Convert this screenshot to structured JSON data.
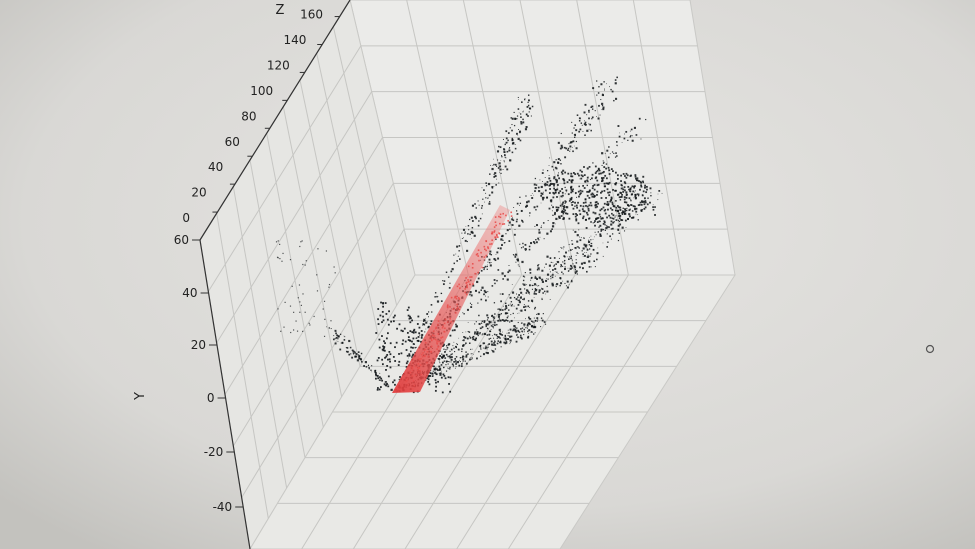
{
  "chart_data": {
    "type": "scatter",
    "projection": "3d",
    "title": "",
    "axes": {
      "y": {
        "label": "Y",
        "ticks": [
          "60",
          "40",
          "20",
          "0",
          "-20",
          "-40"
        ],
        "range": [
          -50,
          60
        ]
      },
      "z": {
        "label": "Z",
        "ticks": [
          "0",
          "20",
          "40",
          "60",
          "80",
          "100",
          "120",
          "140",
          "160"
        ],
        "range": [
          0,
          165
        ]
      }
    },
    "grid": true,
    "series": [
      {
        "color": "#111518",
        "role": "point cloud"
      },
      {
        "color": "#e8504e",
        "role": "highlighted points"
      }
    ]
  }
}
